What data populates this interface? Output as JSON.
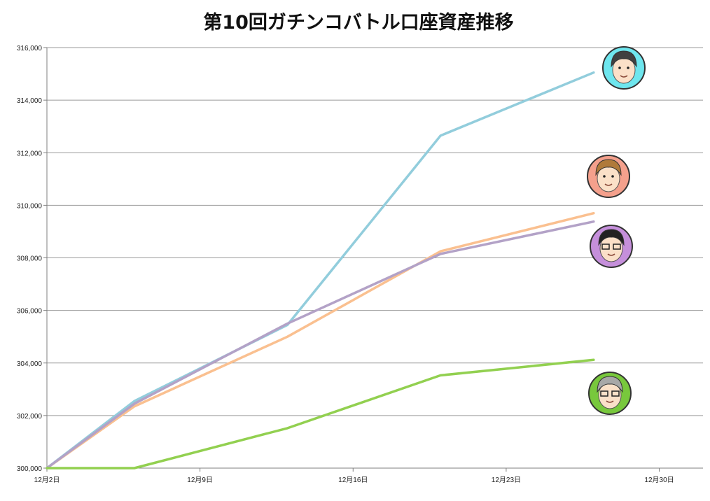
{
  "chart_data": {
    "type": "line",
    "title": "第10回ガチンコバトル口座資産推移",
    "xlabel": "",
    "ylabel": "",
    "x_ticks": [
      "12月2日",
      "12月9日",
      "12月16日",
      "12月23日",
      "12月30日"
    ],
    "x_tick_days": [
      2,
      9,
      16,
      23,
      30
    ],
    "x_range_days": [
      2,
      32
    ],
    "ylim": [
      300000,
      316000
    ],
    "y_ticks": [
      "300,000",
      "302,000",
      "304,000",
      "306,000",
      "308,000",
      "310,000",
      "312,000",
      "314,000",
      "316,000"
    ],
    "y_tick_values": [
      300000,
      302000,
      304000,
      306000,
      308000,
      310000,
      312000,
      314000,
      316000
    ],
    "grid": "horizontal",
    "legend": "avatar icons at right end of each line",
    "x": [
      2,
      6,
      13,
      20,
      27
    ],
    "series": [
      {
        "color": "#92cddc",
        "values": [
          300000,
          302550,
          305450,
          312650,
          315050
        ],
        "icon": "man-avatar-icon",
        "icon_bg": "#6ee6ee"
      },
      {
        "color": "#fac090",
        "values": [
          300000,
          302350,
          305000,
          308250,
          309700
        ],
        "icon": "brown-hair-avatar-icon",
        "icon_bg": "#f4a08c"
      },
      {
        "color": "#b3a2c7",
        "values": [
          300000,
          302450,
          305500,
          308150,
          309380
        ],
        "icon": "glasses-avatar-icon",
        "icon_bg": "#c58fdb"
      },
      {
        "color": "#92d050",
        "values": [
          300000,
          300000,
          301520,
          303530,
          304120
        ],
        "icon": "grey-hair-avatar-icon",
        "icon_bg": "#78c83c"
      }
    ]
  }
}
